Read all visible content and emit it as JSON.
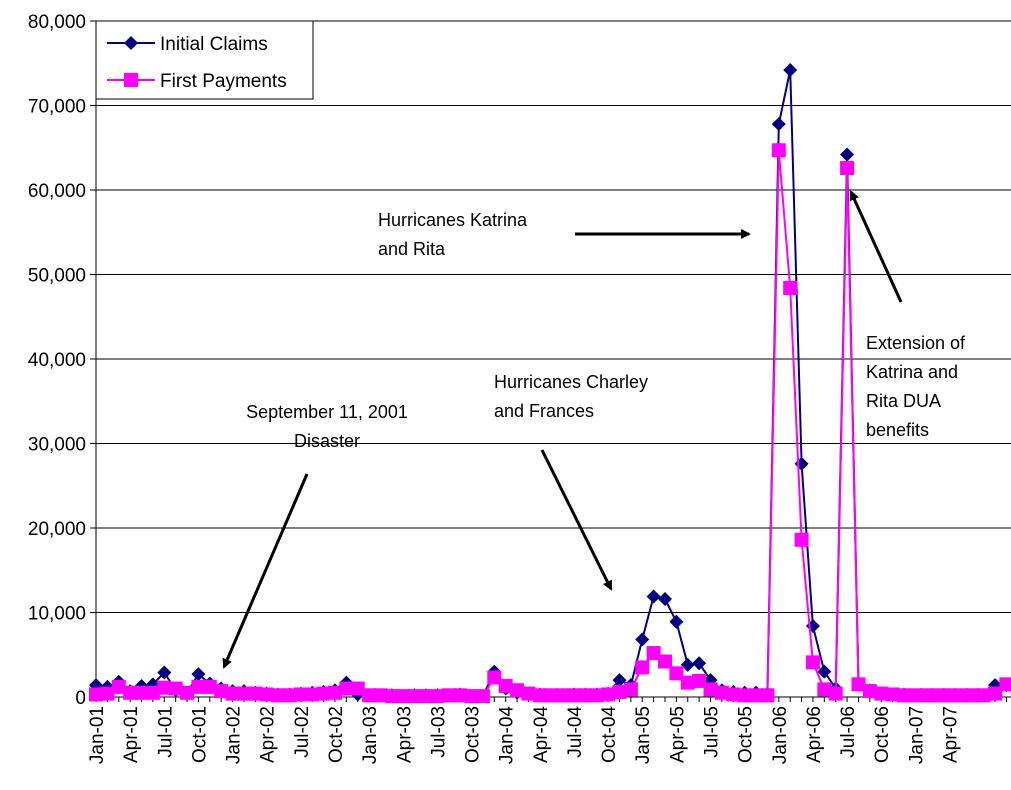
{
  "chart_data": {
    "type": "line",
    "ylim": [
      0,
      80000
    ],
    "y_ticks": [
      "0",
      "10,000",
      "20,000",
      "30,000",
      "40,000",
      "50,000",
      "60,000",
      "70,000",
      "80,000"
    ],
    "x_tick_labels": [
      "Jan-01",
      "Apr-01",
      "Jul-01",
      "Oct-01",
      "Jan-02",
      "Apr-02",
      "Jul-02",
      "Oct-02",
      "Jan-03",
      "Apr-03",
      "Jul-03",
      "Oct-03",
      "Jan-04",
      "Apr-04",
      "Jul-04",
      "Oct-04",
      "Jan-05",
      "Apr-05",
      "Jul-05",
      "Oct-05",
      "Jan-06",
      "Apr-06",
      "Jul-06",
      "Oct-06",
      "Jan-07",
      "Apr-07"
    ],
    "grid": "horizontal",
    "legend_position": "top-left",
    "colors": {
      "initial_claims": "#000080",
      "first_payments": "#ff00ff"
    },
    "series": [
      {
        "name": "Initial Claims",
        "marker": "diamond",
        "values": [
          1400,
          1200,
          1800,
          700,
          1300,
          1500,
          2900,
          800,
          500,
          2700,
          1600,
          1000,
          700,
          700,
          500,
          400,
          300,
          300,
          400,
          500,
          600,
          800,
          1700,
          300,
          200,
          200,
          200,
          100,
          200,
          200,
          200,
          200,
          300,
          100,
          100,
          3000,
          1000,
          500,
          400,
          300,
          200,
          200,
          300,
          300,
          300,
          400,
          2000,
          1400,
          6800,
          11900,
          11600,
          8900,
          3800,
          4000,
          2000,
          800,
          600,
          500,
          500,
          400,
          67800,
          74200,
          27600,
          8400,
          3000,
          1000,
          64200,
          1500,
          800,
          400,
          300,
          300,
          200,
          200,
          200,
          200,
          200,
          200,
          200,
          1400,
          1400,
          1000
        ]
      },
      {
        "name": "First Payments",
        "marker": "square",
        "values": [
          300,
          400,
          1200,
          500,
          500,
          500,
          1100,
          1000,
          500,
          1200,
          1200,
          700,
          400,
          400,
          400,
          300,
          200,
          200,
          300,
          300,
          400,
          500,
          1000,
          1000,
          200,
          200,
          100,
          100,
          100,
          100,
          100,
          200,
          200,
          100,
          100,
          2300,
          1300,
          800,
          400,
          200,
          200,
          200,
          200,
          200,
          200,
          300,
          600,
          900,
          3500,
          5200,
          4200,
          2800,
          1700,
          1900,
          900,
          500,
          300,
          200,
          200,
          200,
          64700,
          48400,
          18600,
          4100,
          900,
          400,
          62600,
          1500,
          700,
          400,
          300,
          200,
          200,
          200,
          200,
          200,
          200,
          200,
          200,
          400,
          1500,
          800
        ]
      }
    ],
    "annotations": [
      {
        "id": "sept11",
        "lines": [
          "September 11, 2001",
          "Disaster"
        ]
      },
      {
        "id": "charley",
        "lines": [
          "Hurricanes Charley",
          "and Frances"
        ]
      },
      {
        "id": "katrina",
        "lines": [
          "Hurricanes Katrina",
          "and Rita"
        ]
      },
      {
        "id": "extension",
        "lines": [
          "Extension of",
          "Katrina and",
          "Rita DUA",
          "benefits"
        ]
      }
    ]
  }
}
